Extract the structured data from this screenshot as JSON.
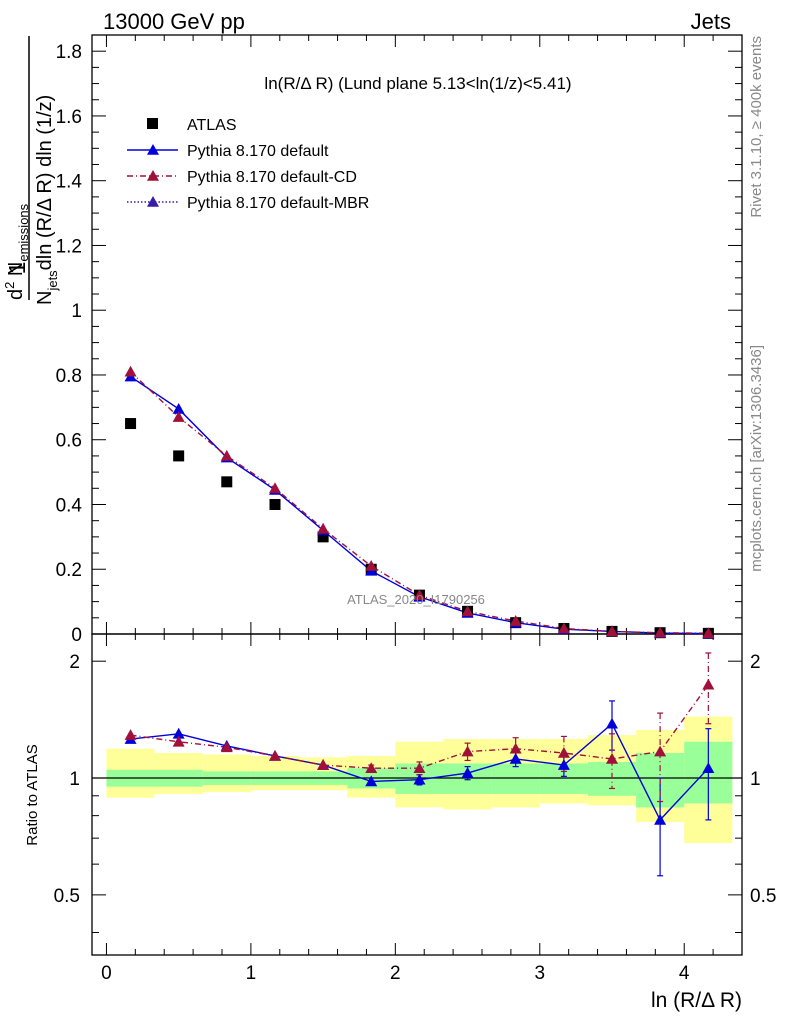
{
  "header": {
    "left": "13000 GeV pp",
    "right": "Jets"
  },
  "side_labels": {
    "rivet": "Rivet 3.1.10, ≥ 400k events",
    "mcplots": "mcplots.cern.ch [arXiv:1306.3436]"
  },
  "watermark": "ATLAS_2020_I1790256",
  "chart_data": {
    "type": "scatter",
    "panels": [
      "main",
      "ratio"
    ],
    "title": "ln(R/Δ R) (Lund plane 5.13<ln(1/z)<5.41)",
    "xlabel": "ln (R/Δ R)",
    "ylabel": {
      "num_prefix": "d",
      "num_sup": "2",
      "num_main": " N",
      "num_sub": "emissions",
      "den_prefix": "N",
      "den_sub": "jets",
      "den_rest": "dln (R/Δ R) dln (1/z)",
      "lhs": "1"
    },
    "ratio_ylabel": "Ratio to ATLAS",
    "xlim": [
      -0.1,
      4.4
    ],
    "ylim": [
      0,
      1.85
    ],
    "ratio_ylim": [
      0.35,
      2.35
    ],
    "ratio_log_scale": true,
    "x_ticks": [
      "0",
      "1",
      "2",
      "3",
      "4"
    ],
    "y_ticks": [
      "0",
      "0.2",
      "0.4",
      "0.6",
      "0.8",
      "1",
      "1.2",
      "1.4",
      "1.6",
      "1.8"
    ],
    "ratio_y_ticks": [
      "0.5",
      "1",
      "2"
    ],
    "legend_position": "top-left",
    "x": [
      0.167,
      0.5,
      0.833,
      1.167,
      1.5,
      1.833,
      2.167,
      2.5,
      2.833,
      3.167,
      3.5,
      3.833,
      4.167
    ],
    "x_edges": [
      0.0,
      0.333,
      0.667,
      1.0,
      1.333,
      1.667,
      2.0,
      2.333,
      2.667,
      3.0,
      3.333,
      3.667,
      4.0,
      4.333
    ],
    "band_stat": [
      [
        0.95,
        1.05
      ],
      [
        0.95,
        1.05
      ],
      [
        0.96,
        1.04
      ],
      [
        0.96,
        1.04
      ],
      [
        0.96,
        1.04
      ],
      [
        0.94,
        1.06
      ],
      [
        0.91,
        1.09
      ],
      [
        0.91,
        1.09
      ],
      [
        0.91,
        1.09
      ],
      [
        0.91,
        1.09
      ],
      [
        0.9,
        1.1
      ],
      [
        0.84,
        1.16
      ],
      [
        0.86,
        1.24
      ]
    ],
    "band_syst": [
      [
        0.89,
        1.19
      ],
      [
        0.91,
        1.16
      ],
      [
        0.92,
        1.15
      ],
      [
        0.93,
        1.14
      ],
      [
        0.93,
        1.13
      ],
      [
        0.89,
        1.14
      ],
      [
        0.84,
        1.24
      ],
      [
        0.83,
        1.26
      ],
      [
        0.84,
        1.26
      ],
      [
        0.86,
        1.26
      ],
      [
        0.85,
        1.29
      ],
      [
        0.77,
        1.33
      ],
      [
        0.68,
        1.44
      ]
    ],
    "series": [
      {
        "name": "ATLAS",
        "marker": "square",
        "color": "#000000",
        "values": [
          0.65,
          0.55,
          0.47,
          0.4,
          0.3,
          0.2,
          0.12,
          0.07,
          0.035,
          0.017,
          0.008,
          0.004,
          0.002
        ]
      },
      {
        "name": "Pythia 8.170 default",
        "marker": "triangle",
        "line": "solid",
        "color": "#0000dd",
        "values": [
          0.795,
          0.695,
          0.545,
          0.445,
          0.32,
          0.195,
          0.115,
          0.065,
          0.035,
          0.015,
          0.008,
          0.003,
          0.0015
        ],
        "ratio": [
          1.26,
          1.3,
          1.21,
          1.14,
          1.08,
          0.98,
          0.99,
          1.03,
          1.12,
          1.08,
          1.38,
          0.78,
          1.06
        ],
        "ratio_err": [
          0.01,
          0.01,
          0.01,
          0.01,
          0.01,
          0.01,
          0.03,
          0.04,
          0.05,
          0.07,
          0.2,
          0.22,
          0.28
        ]
      },
      {
        "name": "Pythia 8.170 default-CD",
        "marker": "triangle",
        "line": "dashdot",
        "color": "#a0103a",
        "values": [
          0.81,
          0.67,
          0.55,
          0.45,
          0.325,
          0.21,
          0.12,
          0.07,
          0.04,
          0.017,
          0.008,
          0.004,
          0.0025
        ],
        "ratio": [
          1.29,
          1.24,
          1.2,
          1.14,
          1.08,
          1.06,
          1.06,
          1.17,
          1.19,
          1.16,
          1.12,
          1.17,
          1.74
        ],
        "ratio_err": [
          0.01,
          0.01,
          0.01,
          0.01,
          0.01,
          0.02,
          0.04,
          0.06,
          0.08,
          0.12,
          0.18,
          0.3,
          0.36
        ]
      },
      {
        "name": "Pythia 8.170 default-MBR",
        "marker": "triangle",
        "line": "dotted",
        "color": "#3a1aa8",
        "values": [],
        "ratio": [],
        "ratio_err": []
      }
    ]
  }
}
